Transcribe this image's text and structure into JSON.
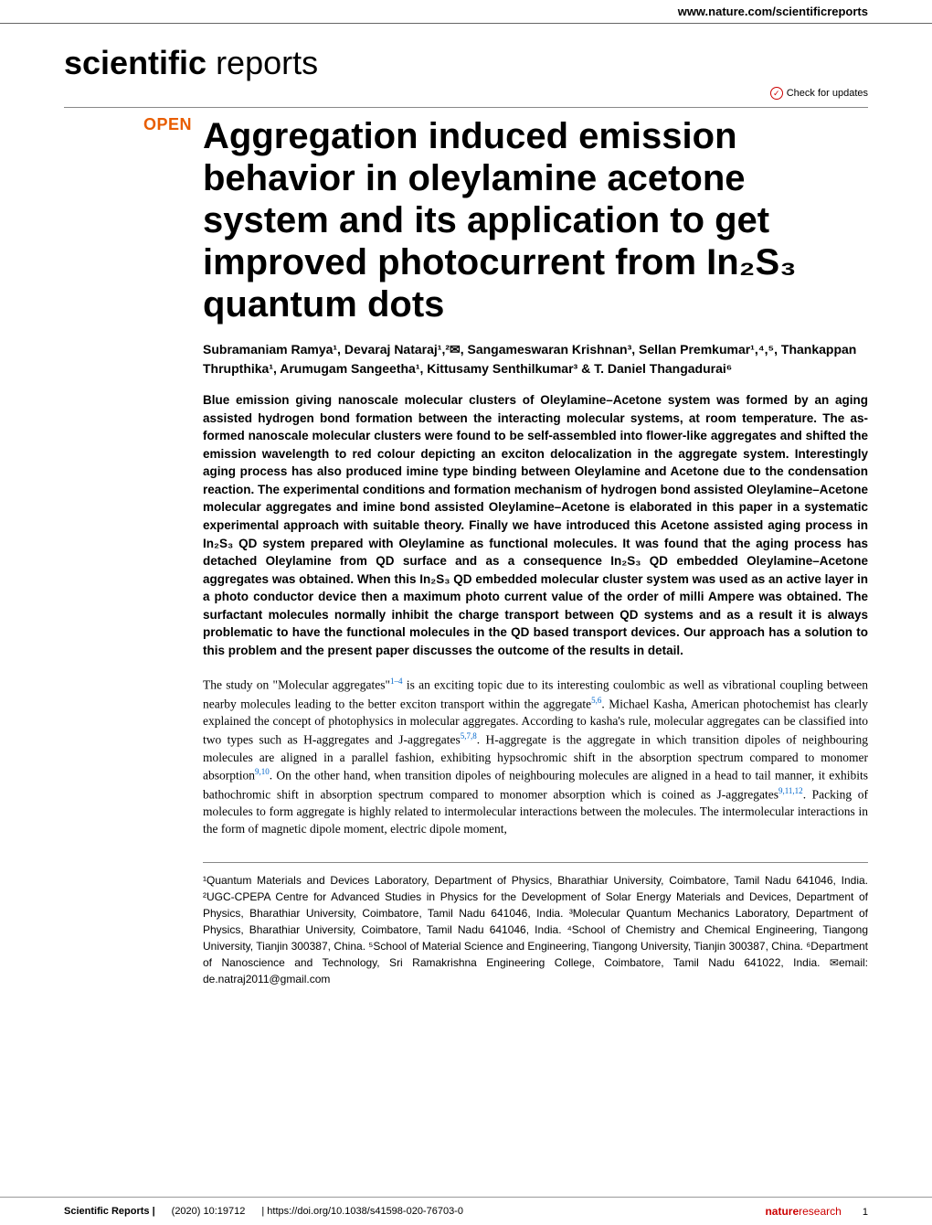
{
  "header": {
    "url": "www.nature.com/scientificreports"
  },
  "journal": {
    "bold": "scientific",
    "light": " reports"
  },
  "updates": {
    "label": "Check for updates"
  },
  "badge": {
    "open": "OPEN"
  },
  "title": "Aggregation induced emission behavior in oleylamine acetone system and its application to get improved photocurrent from In₂S₃ quantum dots",
  "authors": "Subramaniam Ramya¹, Devaraj Nataraj¹,²✉, Sangameswaran Krishnan³, Sellan Premkumar¹,⁴,⁵, Thankappan Thrupthika¹, Arumugam Sangeetha¹, Kittusamy Senthilkumar³ & T. Daniel Thangadurai⁶",
  "abstract": "Blue emission giving nanoscale molecular clusters of Oleylamine–Acetone system was formed by an aging assisted hydrogen bond formation between the interacting molecular systems, at room temperature. The as-formed nanoscale molecular clusters were found to be self-assembled into flower-like aggregates and shifted the emission wavelength to red colour depicting an exciton delocalization in the aggregate system. Interestingly aging process has also produced imine type binding between Oleylamine and Acetone due to the condensation reaction. The experimental conditions and formation mechanism of hydrogen bond assisted Oleylamine–Acetone molecular aggregates and imine bond assisted Oleylamine–Acetone is elaborated in this paper in a systematic experimental approach with suitable theory. Finally we have introduced this Acetone assisted aging process in In₂S₃ QD system prepared with Oleylamine as functional molecules. It was found that the aging process has detached Oleylamine from QD surface and as a consequence In₂S₃ QD embedded Oleylamine–Acetone aggregates was obtained. When this In₂S₃ QD embedded molecular cluster system was used as an active layer in a photo conductor device then a maximum photo current value of the order of milli Ampere was obtained. The surfactant molecules normally inhibit the charge transport between QD systems and as a result it is always problematic to have the functional molecules in the QD based transport devices. Our approach has a solution to this problem and the present paper discusses the outcome of the results in detail.",
  "bodytext": {
    "p1a": "The study on \"Molecular aggregates\"",
    "ref1": "1–4",
    "p1b": " is an exciting topic due to its interesting coulombic as well as vibrational coupling between nearby molecules leading to the better exciton transport within the aggregate",
    "ref2": "5,6",
    "p1c": ". Michael Kasha, American photochemist has clearly explained the concept of photophysics in molecular aggregates. According to kasha's rule, molecular aggregates can be classified into two types such as H-aggregates and J-aggregates",
    "ref3": "5,7,8",
    "p1d": ". H-aggregate is the aggregate in which transition dipoles of neighbouring molecules are aligned in a parallel fashion, exhibiting hypsochromic shift in the absorption spectrum compared to monomer absorption",
    "ref4": "9,10",
    "p1e": ". On the other hand, when transition dipoles of neighbouring molecules are aligned in a head to tail manner, it exhibits bathochromic shift in absorption spectrum compared to monomer absorption which is coined as J-aggregates",
    "ref5": "9,11,12",
    "p1f": ". Packing of molecules to form aggregate is highly related to intermolecular interactions between the molecules. The intermolecular interactions in the form of magnetic dipole moment, electric dipole moment,"
  },
  "affiliations": "¹Quantum Materials and Devices Laboratory, Department of Physics, Bharathiar University, Coimbatore, Tamil Nadu 641046, India. ²UGC-CPEPA Centre for Advanced Studies in Physics for the Development of Solar Energy Materials and Devices, Department of Physics, Bharathiar University, Coimbatore, Tamil Nadu 641046, India. ³Molecular Quantum Mechanics Laboratory, Department of Physics, Bharathiar University, Coimbatore, Tamil Nadu 641046, India. ⁴School of Chemistry and Chemical Engineering, Tiangong University, Tianjin 300387, China. ⁵School of Material Science and Engineering, Tiangong University, Tianjin 300387, China. ⁶Department of Nanoscience and Technology, Sri Ramakrishna Engineering College, Coimbatore, Tamil Nadu 641022, India. ✉email: de.natraj2011@gmail.com",
  "footer": {
    "journal": "Scientific Reports |",
    "citation": "(2020) 10:19712",
    "doi": "| https://doi.org/10.1038/s41598-020-76703-0",
    "brand_bold": "nature",
    "brand_light": "research",
    "page": "1"
  }
}
